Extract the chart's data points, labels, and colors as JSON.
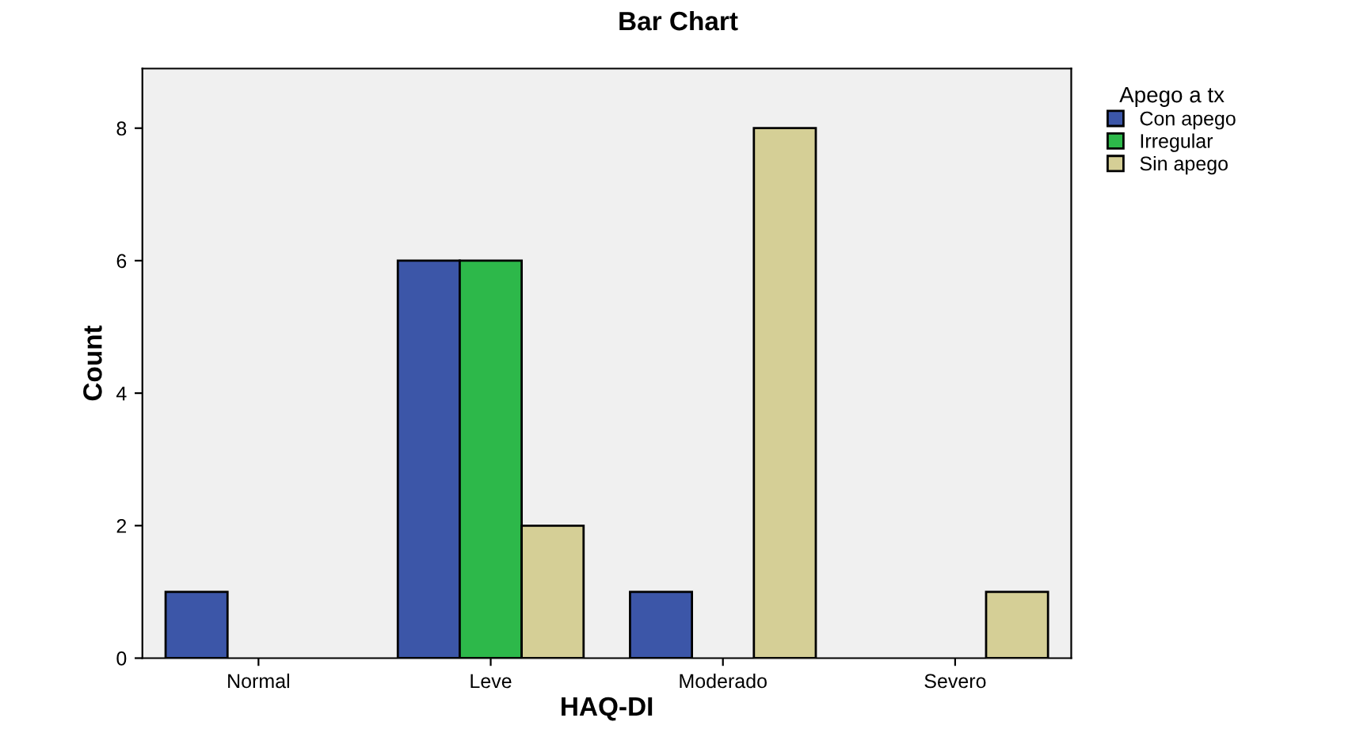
{
  "chart_data": {
    "type": "bar",
    "title": "Bar Chart",
    "xlabel": "HAQ-DI",
    "ylabel": "Count",
    "categories": [
      "Normal",
      "Leve",
      "Moderado",
      "Severo"
    ],
    "series": [
      {
        "name": "Con apego",
        "color": "#3c56a8",
        "values": [
          1,
          6,
          1,
          0
        ]
      },
      {
        "name": "Irregular",
        "color": "#2db84a",
        "values": [
          0,
          6,
          0,
          0
        ]
      },
      {
        "name": "Sin apego",
        "color": "#d5cf96",
        "values": [
          0,
          2,
          8,
          1
        ]
      }
    ],
    "legend_title": "Apego a tx",
    "legend": "top right",
    "grid": false,
    "ylim": [
      0,
      8.9
    ],
    "yticks": [
      0,
      2,
      4,
      6,
      8
    ]
  }
}
